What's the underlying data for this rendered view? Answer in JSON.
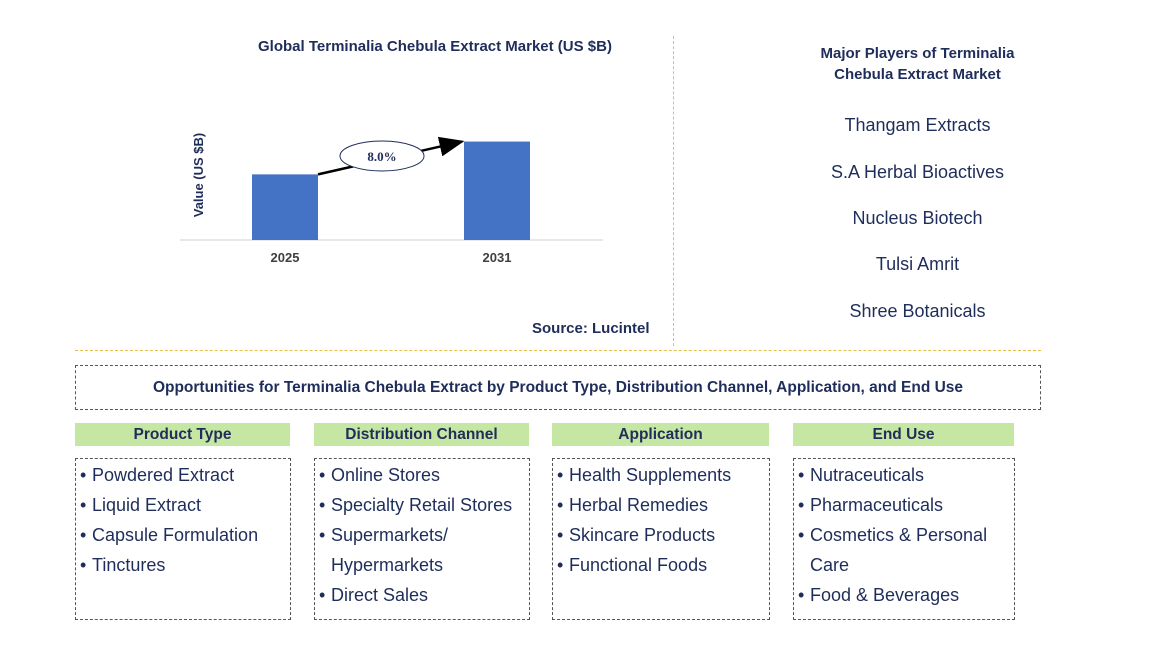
{
  "chart_data": {
    "type": "bar",
    "title": "Global Terminalia Chebula Extract Market (US $B)",
    "ylabel": "Value (US $B)",
    "categories": [
      "2025",
      "2031"
    ],
    "values": [
      1.0,
      1.5
    ],
    "ylim": [
      0,
      1.6
    ],
    "annotation": "8.0%",
    "bar_color": "#4472c4",
    "source": "Source: Lucintel"
  },
  "players": {
    "title_line1": "Major Players of Terminalia",
    "title_line2": "Chebula Extract Market",
    "items": [
      "Thangam Extracts",
      "S.A Herbal Bioactives",
      "Nucleus Biotech",
      "Tulsi Amrit",
      "Shree Botanicals"
    ]
  },
  "opportunities": {
    "title": "Opportunities for Terminalia Chebula Extract by Product Type, Distribution Channel, Application, and End Use"
  },
  "segments": [
    {
      "name": "Product Type",
      "items": [
        [
          "Powdered Extract"
        ],
        [
          "Liquid Extract"
        ],
        [
          "Capsule Formulation"
        ],
        [
          "Tinctures"
        ]
      ]
    },
    {
      "name": "Distribution Channel",
      "items": [
        [
          "Online Stores"
        ],
        [
          "Specialty Retail Stores"
        ],
        [
          "Supermarkets/",
          "Hypermarkets"
        ],
        [
          "Direct Sales"
        ]
      ]
    },
    {
      "name": "Application",
      "items": [
        [
          "Health Supplements"
        ],
        [
          "Herbal Remedies"
        ],
        [
          "Skincare Products"
        ],
        [
          "Functional Foods"
        ]
      ]
    },
    {
      "name": "End Use",
      "items": [
        [
          "Nutraceuticals"
        ],
        [
          "Pharmaceuticals"
        ],
        [
          "Cosmetics & Personal",
          "Care"
        ],
        [
          "Food & Beverages"
        ]
      ]
    }
  ]
}
